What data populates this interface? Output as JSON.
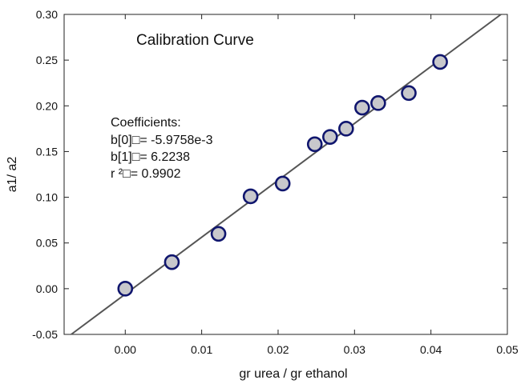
{
  "chart_data": {
    "type": "scatter",
    "title": "Calibration Curve",
    "xlabel": "gr urea / gr ethanol",
    "ylabel": "a1/ a2",
    "xlim": [
      -0.008,
      0.05
    ],
    "ylim": [
      -0.05,
      0.3
    ],
    "x_ticks": [
      0.0,
      0.01,
      0.02,
      0.03,
      0.04,
      0.05
    ],
    "x_tick_labels": [
      "0.00",
      "0.01",
      "0.02",
      "0.03",
      "0.04",
      "0.05"
    ],
    "y_ticks": [
      -0.05,
      0.0,
      0.05,
      0.1,
      0.15,
      0.2,
      0.25,
      0.3
    ],
    "y_tick_labels": [
      "-0.05",
      "0.00",
      "0.05",
      "0.10",
      "0.15",
      "0.20",
      "0.25",
      "0.30"
    ],
    "grid": false,
    "points": {
      "x": [
        0.0,
        0.0061,
        0.0122,
        0.0164,
        0.0206,
        0.0248,
        0.0268,
        0.0289,
        0.031,
        0.0331,
        0.0371,
        0.0412
      ],
      "y": [
        0.0,
        0.029,
        0.06,
        0.101,
        0.115,
        0.158,
        0.166,
        0.175,
        0.198,
        0.203,
        0.214,
        0.248
      ]
    },
    "fit_line": {
      "intercept": -0.0059758,
      "slope": 6.2238
    },
    "annotation": [
      "Coefficients:",
      "b[0]□= -5.9758e-3",
      "b[1]□= 6.2238",
      "r ²□= 0.9902"
    ],
    "colors": {
      "marker_fill": "#c8c8cc",
      "marker_stroke": "#10166e",
      "line": "#555555",
      "axis": "#222222"
    }
  }
}
